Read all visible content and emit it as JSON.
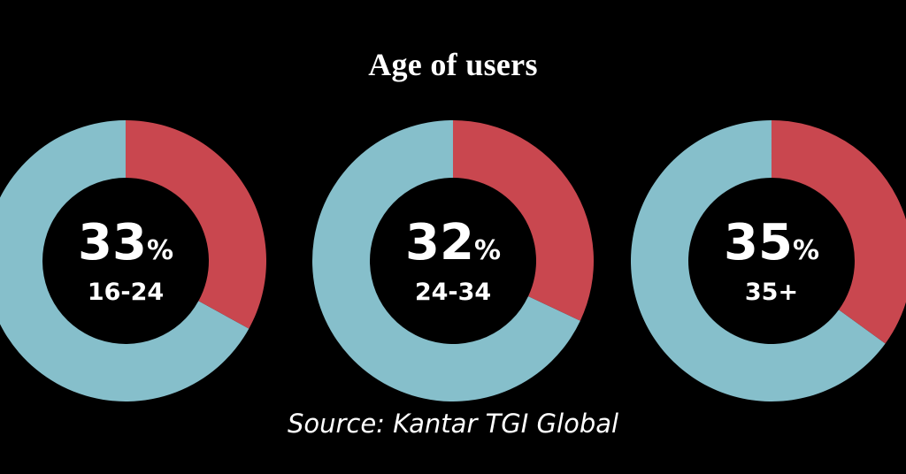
{
  "title": "Age of users",
  "source": "Source: Kantar TGI Global",
  "colors": {
    "highlight": "#c9474f",
    "rest": "#86bfcb",
    "background": "#000000"
  },
  "chart_data": [
    {
      "type": "pie",
      "variant": "donut",
      "category": "16-24",
      "value": 33,
      "unit": "%"
    },
    {
      "type": "pie",
      "variant": "donut",
      "category": "24-34",
      "value": 32,
      "unit": "%"
    },
    {
      "type": "pie",
      "variant": "donut",
      "category": "35+",
      "value": 35,
      "unit": "%"
    }
  ]
}
